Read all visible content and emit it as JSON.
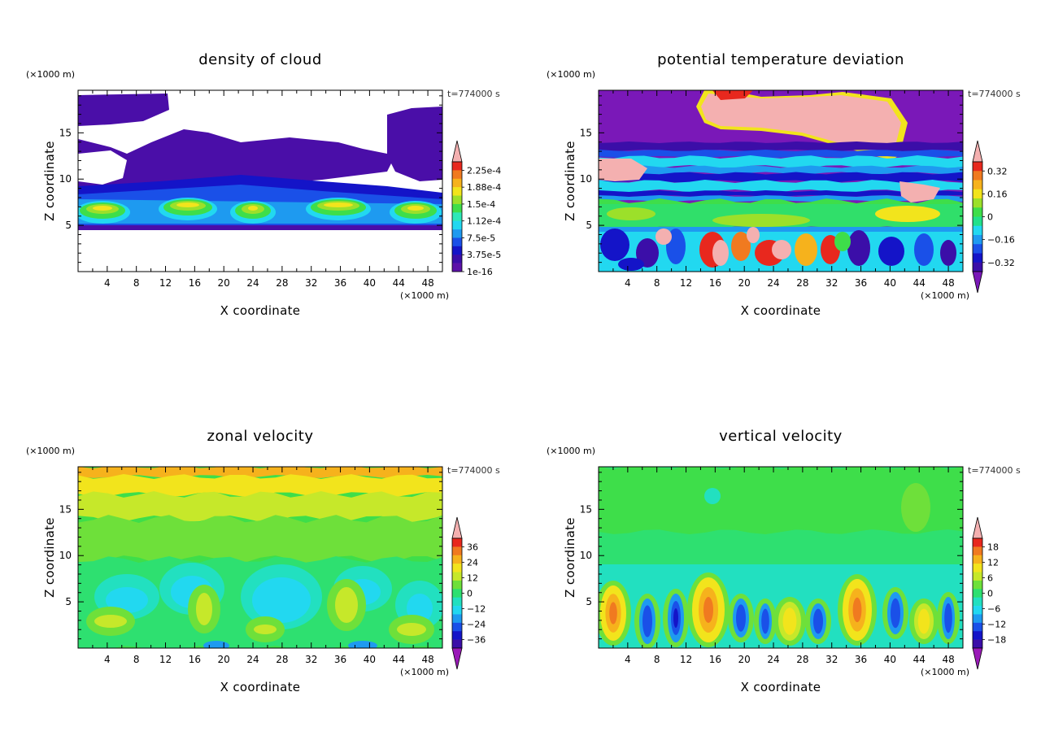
{
  "chart_data": [
    {
      "type": "heatmap",
      "title": "density of cloud",
      "xlabel": "X coordinate",
      "ylabel": "Z coordinate",
      "x_unit": "(×1000 m)",
      "y_unit": "(×1000 m)",
      "time_label": "t=774000 s",
      "xlim": [
        0,
        50
      ],
      "ylim": [
        0,
        19.6
      ],
      "x_ticks": [
        "4",
        "8",
        "12",
        "16",
        "20",
        "24",
        "28",
        "32",
        "36",
        "40",
        "44",
        "48"
      ],
      "y_ticks": [
        "5",
        "10",
        "15"
      ],
      "colorbar_labels": [
        "2.25e-4",
        "1.88e-4",
        "1.5e-4",
        "1.12e-4",
        "7.5e-5",
        "3.75e-5",
        "1e-16"
      ],
      "colorbar_extend": "max"
    },
    {
      "type": "heatmap",
      "title": "potential temperature deviation",
      "xlabel": "X coordinate",
      "ylabel": "Z coordinate",
      "x_unit": "(×1000 m)",
      "y_unit": "(×1000 m)",
      "time_label": "t=774000 s",
      "xlim": [
        0,
        50
      ],
      "ylim": [
        0,
        19.6
      ],
      "x_ticks": [
        "4",
        "8",
        "12",
        "16",
        "20",
        "24",
        "28",
        "32",
        "36",
        "40",
        "44",
        "48"
      ],
      "y_ticks": [
        "5",
        "10",
        "15"
      ],
      "colorbar_labels": [
        "0.32",
        "0.16",
        "0",
        "−0.16",
        "−0.32"
      ],
      "colorbar_extend": "both"
    },
    {
      "type": "heatmap",
      "title": "zonal velocity",
      "xlabel": "X coordinate",
      "ylabel": "Z coordinate",
      "x_unit": "(×1000 m)",
      "y_unit": "(×1000 m)",
      "time_label": "t=774000 s",
      "xlim": [
        0,
        50
      ],
      "ylim": [
        0,
        19.6
      ],
      "x_ticks": [
        "4",
        "8",
        "12",
        "16",
        "20",
        "24",
        "28",
        "32",
        "36",
        "40",
        "44",
        "48"
      ],
      "y_ticks": [
        "5",
        "10",
        "15"
      ],
      "colorbar_labels": [
        "36",
        "24",
        "12",
        "0",
        "−12",
        "−24",
        "−36"
      ],
      "colorbar_extend": "both"
    },
    {
      "type": "heatmap",
      "title": "vertical velocity",
      "xlabel": "X coordinate",
      "ylabel": "Z coordinate",
      "x_unit": "(×1000 m)",
      "y_unit": "(×1000 m)",
      "time_label": "t=774000 s",
      "xlim": [
        0,
        50
      ],
      "ylim": [
        0,
        19.6
      ],
      "x_ticks": [
        "4",
        "8",
        "12",
        "16",
        "20",
        "24",
        "28",
        "32",
        "36",
        "40",
        "44",
        "48"
      ],
      "y_ticks": [
        "5",
        "10",
        "15"
      ],
      "colorbar_labels": [
        "18",
        "12",
        "6",
        "0",
        "−6",
        "−12",
        "−18"
      ],
      "colorbar_extend": "both"
    }
  ]
}
